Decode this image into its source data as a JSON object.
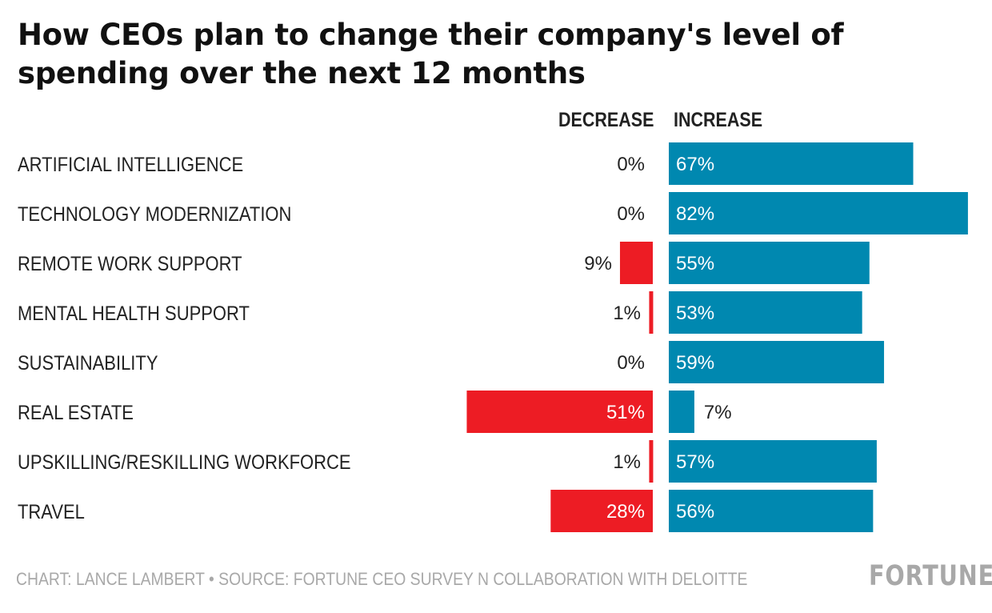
{
  "title": "How CEOs plan to change their company's level of spending over the next 12 months",
  "headers": {
    "decrease": "DECREASE",
    "increase": "INCREASE"
  },
  "footer": "CHART: LANCE LAMBERT • SOURCE: FORTUNE CEO SURVEY N COLLABORATION WITH DELOITTE",
  "logo": "FORTUNE",
  "colors": {
    "decrease": "#ed1c24",
    "increase": "#0088b0",
    "label_on_bar": "#ffffff",
    "label_off_bar": "#222222"
  },
  "chart_data": {
    "type": "bar",
    "orientation": "horizontal-diverging",
    "categories": [
      "ARTIFICIAL INTELLIGENCE",
      "TECHNOLOGY MODERNIZATION",
      "REMOTE WORK SUPPORT",
      "MENTAL HEALTH SUPPORT",
      "SUSTAINABILITY",
      "REAL ESTATE",
      "UPSKILLING/RESKILLING WORKFORCE",
      "TRAVEL"
    ],
    "series": [
      {
        "name": "DECREASE",
        "values": [
          0,
          0,
          9,
          1,
          0,
          51,
          1,
          28
        ]
      },
      {
        "name": "INCREASE",
        "values": [
          67,
          82,
          55,
          53,
          59,
          7,
          57,
          56
        ]
      }
    ],
    "unit": "%"
  }
}
